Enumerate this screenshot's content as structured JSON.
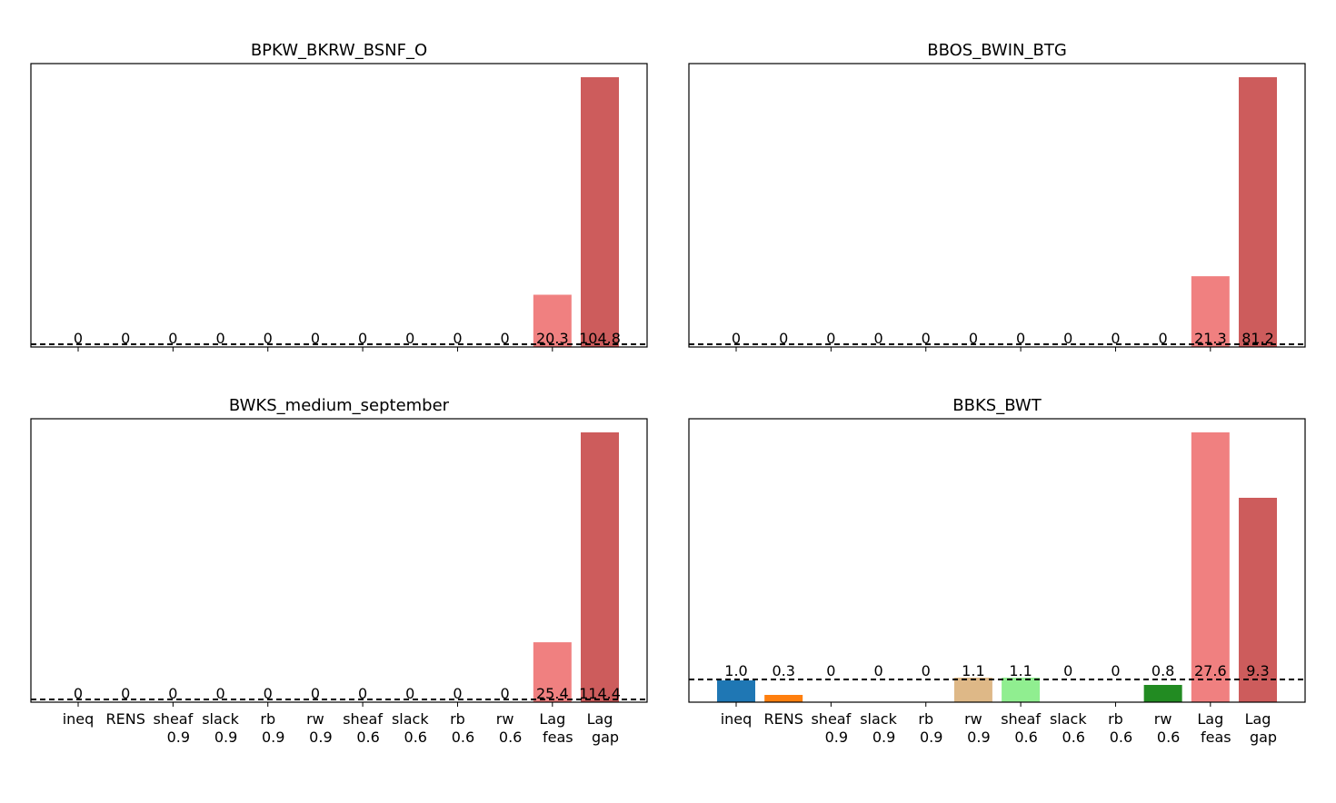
{
  "category_lines": [
    [
      "ineq"
    ],
    [
      "RENS"
    ],
    [
      "sheaf",
      "0.9"
    ],
    [
      "slack",
      "0.9"
    ],
    [
      "rb",
      "0.9"
    ],
    [
      "rw",
      "0.9"
    ],
    [
      "sheaf",
      "0.6"
    ],
    [
      "slack",
      "0.6"
    ],
    [
      "rb",
      "0.6"
    ],
    [
      "rw",
      "0.6"
    ],
    [
      "Lag",
      "feas"
    ],
    [
      "Lag",
      "gap"
    ]
  ],
  "chart_data": [
    {
      "type": "bar",
      "title": "BPKW_BKRW_BSNF_O",
      "values": [
        0,
        0,
        0,
        0,
        0,
        0,
        0,
        0,
        0,
        0,
        20.3,
        104.8
      ],
      "value_labels": [
        "0",
        "0",
        "0",
        "0",
        "0",
        "0",
        "0",
        "0",
        "0",
        "0",
        "20.3",
        "104.8"
      ],
      "baseline": 0,
      "ylim": [
        0,
        110
      ],
      "colors": [
        "#1f77b4",
        "#ff7f0e",
        "#ffdd00",
        "#8b4513",
        "#800080",
        "#deb887",
        "#90ee90",
        "#d2b48c",
        "#add8e6",
        "#228b22",
        "#f08080",
        "#cd5c5c"
      ],
      "show_tick_labels": false
    },
    {
      "type": "bar",
      "title": "BBOS_BWIN_BTG",
      "values": [
        0,
        0,
        0,
        0,
        0,
        0,
        0,
        0,
        0,
        0,
        21.3,
        81.2
      ],
      "value_labels": [
        "0",
        "0",
        "0",
        "0",
        "0",
        "0",
        "0",
        "0",
        "0",
        "0",
        "21.3",
        "81.2"
      ],
      "baseline": 0,
      "ylim": [
        0,
        85.3
      ],
      "colors": [
        "#1f77b4",
        "#ff7f0e",
        "#ffdd00",
        "#8b4513",
        "#800080",
        "#deb887",
        "#90ee90",
        "#d2b48c",
        "#add8e6",
        "#228b22",
        "#f08080",
        "#cd5c5c"
      ],
      "show_tick_labels": false
    },
    {
      "type": "bar",
      "title": "BWKS_medium_september",
      "values": [
        0,
        0,
        0,
        0,
        0,
        0,
        0,
        0,
        0,
        0,
        25.4,
        114.4
      ],
      "value_labels": [
        "0",
        "0",
        "0",
        "0",
        "0",
        "0",
        "0",
        "0",
        "0",
        "0",
        "25.4",
        "114.4"
      ],
      "baseline": 0,
      "ylim": [
        0,
        120
      ],
      "colors": [
        "#1f77b4",
        "#ff7f0e",
        "#ffdd00",
        "#8b4513",
        "#800080",
        "#deb887",
        "#90ee90",
        "#d2b48c",
        "#add8e6",
        "#228b22",
        "#f08080",
        "#cd5c5c"
      ],
      "show_tick_labels": true
    },
    {
      "type": "bar",
      "title": "BBKS_BWT",
      "values": [
        1.0,
        0.3,
        0,
        0,
        0,
        1.1,
        1.1,
        0,
        0,
        0.8,
        27.6,
        9.3
      ],
      "value_labels": [
        "1.0",
        "0.3",
        "0",
        "0",
        "0",
        "1.1",
        "1.1",
        "0",
        "0",
        "0.8",
        "27.6",
        "9.3"
      ],
      "baseline": 1,
      "ylim": [
        0,
        12.0
      ],
      "ylim_note": "",
      "colors": [
        "#1f77b4",
        "#ff7f0e",
        "#ffdd00",
        "#8b4513",
        "#800080",
        "#deb887",
        "#90ee90",
        "#d2b48c",
        "#add8e6",
        "#228b22",
        "#f08080",
        "#cd5c5c"
      ],
      "show_tick_labels": true
    }
  ]
}
